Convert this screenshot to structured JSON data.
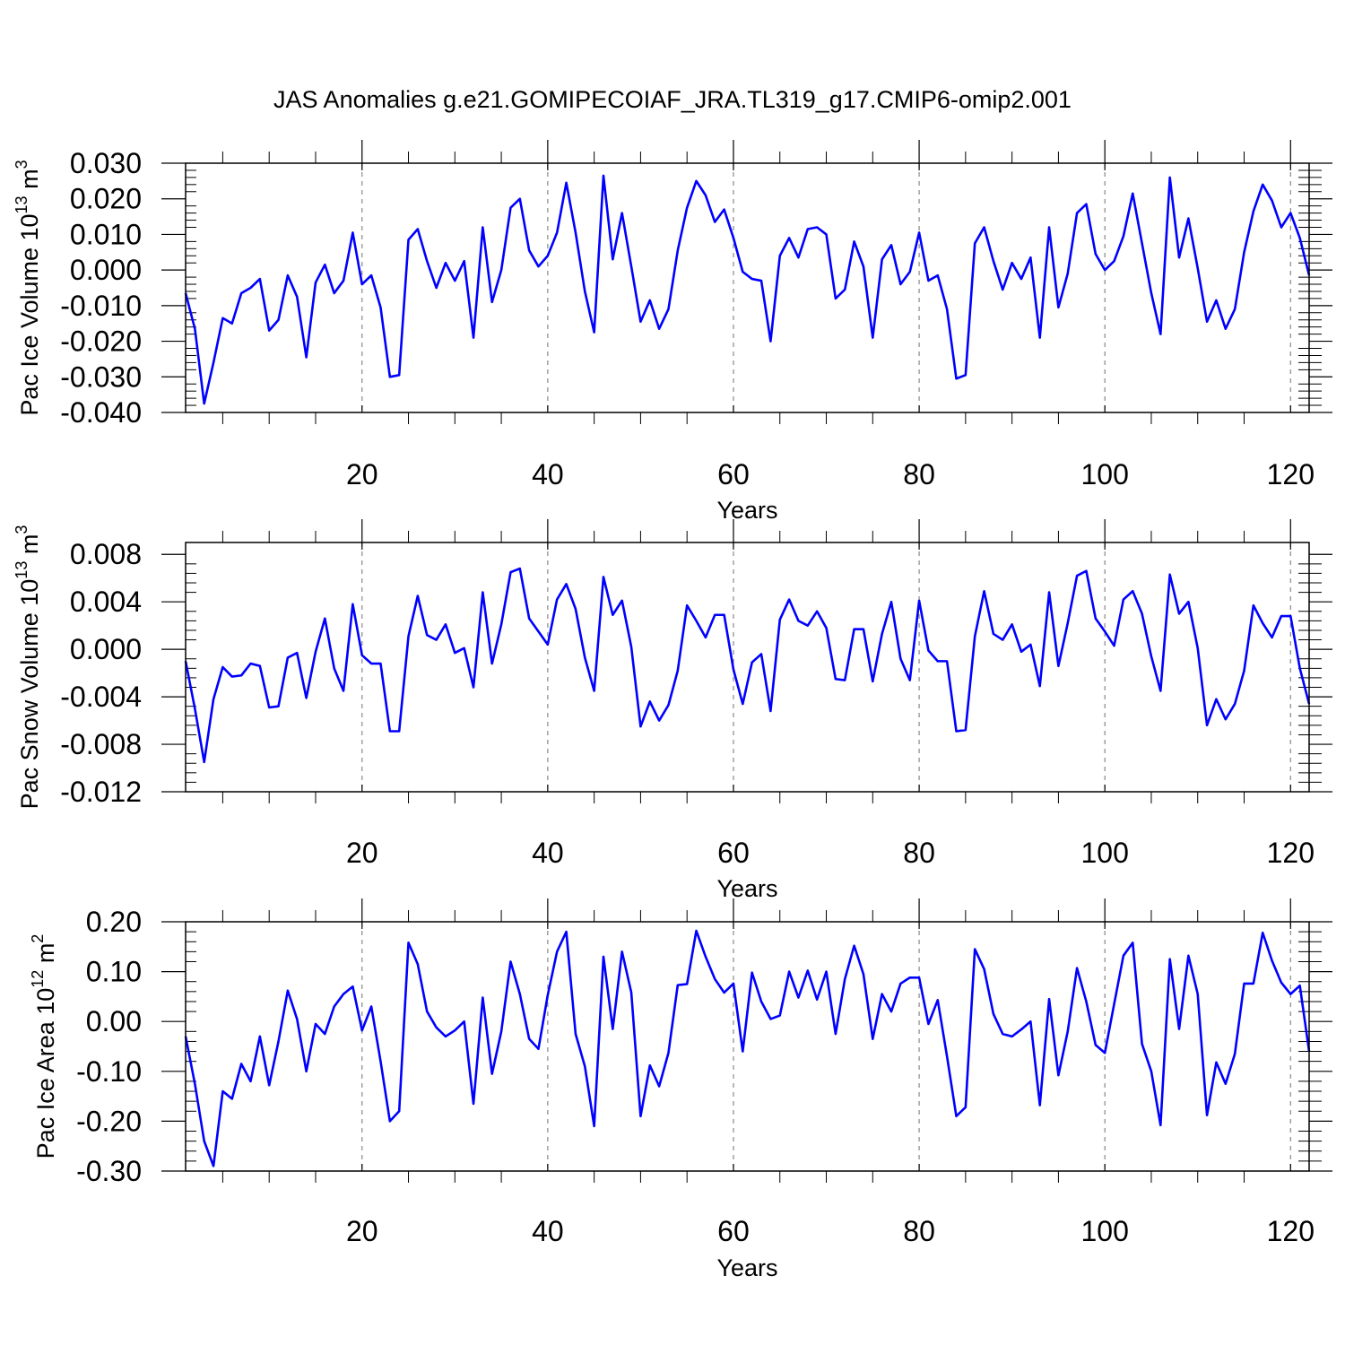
{
  "figure_title": "JAS Anomalies g.e21.GOMIPECOIAF_JRA.TL319_g17.CMIP6-omip2.001",
  "line_color": "#0000ff",
  "chart_data": [
    {
      "type": "line",
      "title": "",
      "xlabel": "Years",
      "ylabel_text": "Pac Ice Volume 10",
      "ylabel_exp": "13",
      "ylabel_unit": " m",
      "ylabel_unit_exp": "3",
      "xlim": [
        1,
        122
      ],
      "ylim": [
        -0.04,
        0.03
      ],
      "xticks": [
        20,
        40,
        60,
        80,
        100,
        120
      ],
      "xtick_labels": [
        "20",
        "40",
        "60",
        "80",
        "100",
        "120"
      ],
      "yticks": [
        -0.04,
        -0.03,
        -0.02,
        -0.01,
        0.0,
        0.01,
        0.02,
        0.03
      ],
      "ytick_labels": [
        "-0.040",
        "-0.030",
        "-0.020",
        "-0.010",
        "0.000",
        "0.010",
        "0.020",
        "0.030"
      ],
      "grid": "dashed vertical at x ticks",
      "series": [
        {
          "name": "Pac Ice Volume",
          "values": [
            -0.0065,
            -0.0165,
            -0.0375,
            -0.026,
            -0.0135,
            -0.015,
            -0.0065,
            -0.005,
            -0.0025,
            -0.017,
            -0.014,
            -0.0015,
            -0.0075,
            -0.0245,
            -0.0035,
            0.0015,
            -0.0065,
            -0.003,
            0.0105,
            -0.004,
            -0.0015,
            -0.0105,
            -0.03,
            -0.0295,
            0.0085,
            0.0115,
            0.0025,
            -0.005,
            0.002,
            -0.003,
            0.0025,
            -0.019,
            0.012,
            -0.009,
            0.0,
            0.0175,
            0.02,
            0.0055,
            0.001,
            0.004,
            0.0105,
            0.0245,
            0.0105,
            -0.006,
            -0.0175,
            0.0265,
            0.003,
            0.016,
            0.001,
            -0.0145,
            -0.0085,
            -0.0165,
            -0.011,
            0.0055,
            0.0175,
            0.025,
            0.021,
            0.0135,
            0.017,
            0.009,
            -0.0005,
            -0.0025,
            -0.003,
            -0.02,
            0.004,
            0.009,
            0.0035,
            0.0115,
            0.012,
            0.01,
            -0.008,
            -0.0055,
            0.008,
            0.001,
            -0.019,
            0.003,
            0.007,
            -0.004,
            -0.0005,
            0.0105,
            -0.003,
            -0.0015,
            -0.011,
            -0.0305,
            -0.0295,
            0.0075,
            0.012,
            0.0025,
            -0.0055,
            0.002,
            -0.0025,
            0.0035,
            -0.019,
            0.012,
            -0.0105,
            -0.001,
            0.016,
            0.0185,
            0.0045,
            0.0,
            0.0025,
            0.0095,
            0.0215,
            0.0075,
            -0.0065,
            -0.018,
            0.026,
            0.0035,
            0.0145,
            0.0005,
            -0.0145,
            -0.0085,
            -0.0165,
            -0.011,
            0.005,
            0.0165,
            0.024,
            0.0195,
            0.012,
            0.016,
            0.009,
            -0.0015
          ]
        }
      ]
    },
    {
      "type": "line",
      "title": "",
      "xlabel": "Years",
      "ylabel_text": "Pac Snow Volume 10",
      "ylabel_exp": "13",
      "ylabel_unit": " m",
      "ylabel_unit_exp": "3",
      "xlim": [
        1,
        122
      ],
      "ylim": [
        -0.012,
        0.009
      ],
      "xticks": [
        20,
        40,
        60,
        80,
        100,
        120
      ],
      "xtick_labels": [
        "20",
        "40",
        "60",
        "80",
        "100",
        "120"
      ],
      "yticks": [
        -0.012,
        -0.008,
        -0.004,
        0.0,
        0.004,
        0.008
      ],
      "ytick_labels": [
        "-0.012",
        "-0.008",
        "-0.004",
        "0.000",
        "0.004",
        "0.008"
      ],
      "grid": "dashed vertical at x ticks",
      "series": [
        {
          "name": "Pac Snow Volume",
          "values": [
            -0.001,
            -0.005,
            -0.0095,
            -0.0042,
            -0.0015,
            -0.0023,
            -0.0022,
            -0.0012,
            -0.0014,
            -0.0049,
            -0.0048,
            -0.0007,
            -0.0003,
            -0.0041,
            -0.0002,
            0.0026,
            -0.0016,
            -0.0035,
            0.0038,
            -0.0005,
            -0.0012,
            -0.0012,
            -0.0069,
            -0.0069,
            0.0011,
            0.0045,
            0.0012,
            0.0008,
            0.0021,
            -0.0003,
            0.0001,
            -0.0032,
            0.0048,
            -0.0012,
            0.0021,
            0.0065,
            0.0068,
            0.0026,
            0.0015,
            0.0004,
            0.0042,
            0.0055,
            0.0034,
            -0.0007,
            -0.0035,
            0.0061,
            0.0029,
            0.0041,
            0.0002,
            -0.0065,
            -0.0044,
            -0.006,
            -0.0047,
            -0.0018,
            0.0037,
            0.0024,
            0.001,
            0.0029,
            0.0029,
            -0.0017,
            -0.0046,
            -0.0011,
            -0.0004,
            -0.0052,
            0.0025,
            0.0042,
            0.0024,
            0.002,
            0.0032,
            0.0018,
            -0.0025,
            -0.0026,
            0.0017,
            0.0017,
            -0.0027,
            0.0013,
            0.004,
            -0.0008,
            -0.0026,
            0.0041,
            -0.0001,
            -0.001,
            -0.001,
            -0.0069,
            -0.0068,
            0.0011,
            0.0049,
            0.0013,
            0.0008,
            0.0021,
            -0.0002,
            0.0004,
            -0.0031,
            0.0048,
            -0.0014,
            0.0022,
            0.0062,
            0.0066,
            0.0026,
            0.0015,
            0.0003,
            0.0042,
            0.0049,
            0.003,
            -0.0006,
            -0.0035,
            0.0063,
            0.003,
            0.004,
            0.0001,
            -0.0064,
            -0.0042,
            -0.0059,
            -0.0046,
            -0.0018,
            0.0037,
            0.0022,
            0.001,
            0.0028,
            0.0028,
            -0.0016,
            -0.0046
          ]
        }
      ]
    },
    {
      "type": "line",
      "title": "",
      "xlabel": "Years",
      "ylabel_text": "Pac Ice Area 10",
      "ylabel_exp": "12",
      "ylabel_unit": " m",
      "ylabel_unit_exp": "2",
      "xlim": [
        1,
        122
      ],
      "ylim": [
        -0.3,
        0.2
      ],
      "xticks": [
        20,
        40,
        60,
        80,
        100,
        120
      ],
      "xtick_labels": [
        "20",
        "40",
        "60",
        "80",
        "100",
        "120"
      ],
      "yticks": [
        -0.3,
        -0.2,
        -0.1,
        0.0,
        0.1,
        0.2
      ],
      "ytick_labels": [
        "-0.30",
        "-0.20",
        "-0.10",
        "0.00",
        "0.10",
        "0.20"
      ],
      "grid": "dashed vertical at x ticks",
      "series": [
        {
          "name": "Pac Ice Area",
          "values": [
            -0.03,
            -0.125,
            -0.24,
            -0.29,
            -0.14,
            -0.155,
            -0.085,
            -0.12,
            -0.03,
            -0.128,
            -0.04,
            0.062,
            0.005,
            -0.1,
            -0.005,
            -0.025,
            0.03,
            0.055,
            0.07,
            -0.018,
            0.03,
            -0.08,
            -0.2,
            -0.18,
            0.158,
            0.115,
            0.02,
            -0.012,
            -0.03,
            -0.018,
            0.0,
            -0.165,
            0.048,
            -0.105,
            -0.02,
            0.12,
            0.055,
            -0.035,
            -0.055,
            0.053,
            0.14,
            0.18,
            -0.025,
            -0.09,
            -0.21,
            0.13,
            -0.015,
            0.14,
            0.058,
            -0.19,
            -0.088,
            -0.13,
            -0.063,
            0.073,
            0.075,
            0.182,
            0.13,
            0.085,
            0.058,
            0.076,
            -0.06,
            0.098,
            0.04,
            0.005,
            0.012,
            0.1,
            0.048,
            0.102,
            0.044,
            0.1,
            -0.025,
            0.085,
            0.152,
            0.095,
            -0.035,
            0.055,
            0.02,
            0.076,
            0.088,
            0.088,
            -0.005,
            0.043,
            -0.07,
            -0.19,
            -0.172,
            0.145,
            0.105,
            0.015,
            -0.025,
            -0.03,
            -0.016,
            0.0,
            -0.168,
            0.045,
            -0.108,
            -0.02,
            0.107,
            0.04,
            -0.047,
            -0.063,
            0.035,
            0.132,
            0.158,
            -0.045,
            -0.1,
            -0.208,
            0.125,
            -0.015,
            0.132,
            0.055,
            -0.188,
            -0.082,
            -0.125,
            -0.065,
            0.076,
            0.076,
            0.178,
            0.122,
            0.078,
            0.055,
            0.072,
            -0.06
          ]
        }
      ]
    }
  ]
}
